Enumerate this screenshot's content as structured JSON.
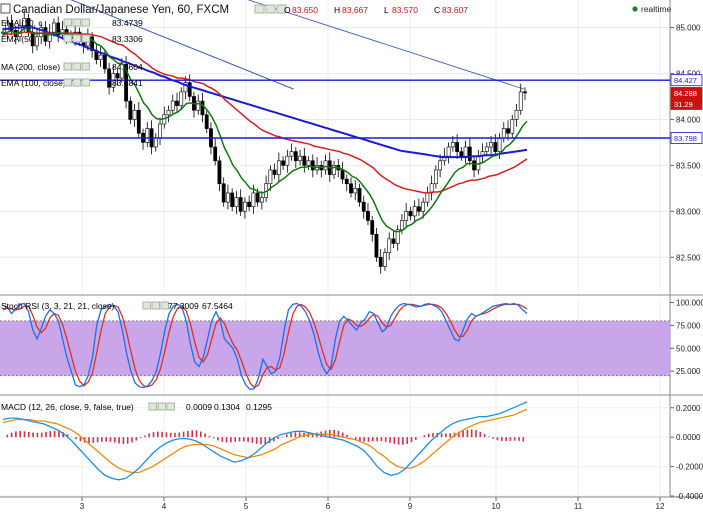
{
  "header": {
    "title": "Canadian Dollar/Japanese Yen, 60, FXCM",
    "ohlc": [
      {
        "k": "O",
        "v": "83.650"
      },
      {
        "k": "H",
        "v": "83.667"
      },
      {
        "k": "L",
        "v": "83.570"
      },
      {
        "k": "C",
        "v": "83.607"
      }
    ],
    "realtime_label": "realtime"
  },
  "colors": {
    "background": "#ffffff",
    "candle": "#000000",
    "ema10": "#0e7a0e",
    "ema50": "#d42020",
    "ma200": "#1a1ad0",
    "trendline": "#3a5fb0",
    "stoch_k": "#1e6fe8",
    "stoch_d": "#e03020",
    "stoch_band": "#c9a6ea",
    "macd_line": "#1e8fe0",
    "macd_signal": "#f08a10",
    "hist": "#d03048"
  },
  "indicators": [
    {
      "label": "EMA (10, c",
      "value": "83.4739",
      "color": "#0e7a0e"
    },
    {
      "label": "EMA (50",
      "value": "83.3306",
      "color": "#d42020"
    },
    {
      "label": "MA (200, close)",
      "value": "84.6604",
      "color": "#1a1ad0"
    },
    {
      "label": "EMA (100, close)",
      "value": "83.5841",
      "color": "#1a1ad0"
    }
  ],
  "price_tags": [
    {
      "value": "84.427",
      "bg": "#ffffff",
      "fg": "#1a1ad0"
    },
    {
      "value": "84.288",
      "bg": "#cc1111",
      "fg": "#ffffff"
    },
    {
      "value": "31.29",
      "bg": "#cc1111",
      "fg": "#ffffff"
    },
    {
      "value": "83.798",
      "bg": "#ffffff",
      "fg": "#1a1ad0"
    }
  ],
  "stoch_header": {
    "label": "Stoch RSI (3, 3, 21, 21, close)",
    "k": "77.3009",
    "d": "67.5464"
  },
  "macd_header": {
    "label": "MACD (12, 26, close, 9, false, true)",
    "hist": "0.0009",
    "macd": "0.1304",
    "signal": "0.1295"
  },
  "chart_data": {
    "type": "candlestick",
    "x_ticks": [
      "3",
      "4",
      "5",
      "6",
      "9",
      "10",
      "11",
      "12"
    ],
    "price_axis": {
      "ylim": [
        82.1,
        85.3
      ],
      "ticks": [
        "85.000",
        "84.500",
        "84.000",
        "83.500",
        "83.000",
        "82.500"
      ]
    },
    "horizontal_lines": [
      84.427,
      83.798
    ],
    "trendline": {
      "from": [
        0,
        85.6
      ],
      "to": [
        68.5,
        84.33
      ]
    },
    "closes": [
      84.95,
      85.05,
      84.97,
      84.9,
      85.02,
      85.1,
      84.95,
      84.8,
      84.9,
      85.0,
      84.85,
      84.95,
      85.05,
      84.92,
      84.98,
      84.9,
      84.88,
      84.95,
      84.85,
      84.8,
      84.9,
      84.75,
      84.65,
      84.7,
      84.55,
      84.35,
      84.5,
      84.45,
      84.6,
      84.2,
      84.0,
      84.1,
      83.85,
      83.75,
      83.9,
      83.7,
      83.8,
      83.95,
      84.05,
      84.1,
      84.2,
      84.15,
      84.3,
      84.4,
      84.25,
      84.1,
      84.2,
      84.05,
      83.9,
      83.7,
      83.55,
      83.3,
      83.1,
      83.2,
      83.05,
      83.15,
      83.0,
      83.1,
      83.05,
      83.2,
      83.1,
      83.15,
      83.3,
      83.45,
      83.4,
      83.55,
      83.5,
      83.6,
      83.65,
      83.55,
      83.6,
      83.5,
      83.55,
      83.45,
      83.5,
      83.45,
      83.55,
      83.4,
      83.5,
      83.45,
      83.35,
      83.3,
      83.2,
      83.25,
      83.1,
      83.0,
      82.9,
      82.75,
      82.5,
      82.4,
      82.55,
      82.7,
      82.65,
      82.8,
      82.9,
      83.0,
      82.95,
      83.05,
      83.0,
      83.1,
      83.2,
      83.3,
      83.45,
      83.55,
      83.6,
      83.7,
      83.75,
      83.65,
      83.6,
      83.7,
      83.55,
      83.45,
      83.6,
      83.65,
      83.7,
      83.75,
      83.65,
      83.8,
      83.9,
      83.85,
      84.0,
      84.1,
      84.3,
      84.29
    ],
    "ema10": [
      84.92,
      84.95,
      84.96,
      84.94,
      84.95,
      84.99,
      84.98,
      84.94,
      84.93,
      84.94,
      84.92,
      84.92,
      84.94,
      84.94,
      84.94,
      84.93,
      84.92,
      84.92,
      84.91,
      84.89,
      84.89,
      84.86,
      84.82,
      84.8,
      84.75,
      84.68,
      84.65,
      84.61,
      84.61,
      84.53,
      84.43,
      84.37,
      84.28,
      84.18,
      84.13,
      84.05,
      84.01,
      84.0,
      84.01,
      84.03,
      84.06,
      84.08,
      84.12,
      84.17,
      84.18,
      84.17,
      84.17,
      84.15,
      84.1,
      84.03,
      83.94,
      83.82,
      83.69,
      83.6,
      83.5,
      83.44,
      83.36,
      83.31,
      83.25,
      83.24,
      83.21,
      83.2,
      83.22,
      83.26,
      83.29,
      83.33,
      83.36,
      83.4,
      83.44,
      83.46,
      83.48,
      83.48,
      83.49,
      83.48,
      83.48,
      83.48,
      83.49,
      83.47,
      83.48,
      83.47,
      83.45,
      83.42,
      83.38,
      83.36,
      83.31,
      83.25,
      83.19,
      83.11,
      83.0,
      82.9,
      82.84,
      82.81,
      82.78,
      82.78,
      82.8,
      82.84,
      82.86,
      82.9,
      82.92,
      82.96,
      83.01,
      83.07,
      83.14,
      83.22,
      83.28,
      83.35,
      83.42,
      83.46,
      83.48,
      83.52,
      83.52,
      83.51,
      83.52,
      83.54,
      83.57,
      83.6,
      83.61,
      83.64,
      83.7,
      83.73,
      83.78,
      83.85,
      83.93,
      83.98
    ],
    "ema50": [
      84.92,
      84.93,
      84.93,
      84.93,
      84.94,
      84.95,
      84.95,
      84.94,
      84.94,
      84.94,
      84.94,
      84.94,
      84.94,
      84.94,
      84.94,
      84.94,
      84.94,
      84.94,
      84.93,
      84.93,
      84.93,
      84.92,
      84.91,
      84.9,
      84.88,
      84.86,
      84.84,
      84.82,
      84.81,
      84.78,
      84.74,
      84.71,
      84.67,
      84.63,
      84.6,
      84.56,
      84.53,
      84.51,
      84.49,
      84.48,
      84.47,
      84.45,
      84.45,
      84.44,
      84.43,
      84.41,
      84.4,
      84.39,
      84.36,
      84.34,
      84.31,
      84.27,
      84.22,
      84.18,
      84.14,
      84.1,
      84.06,
      84.02,
      83.98,
      83.95,
      83.91,
      83.88,
      83.86,
      83.84,
      83.82,
      83.81,
      83.79,
      83.78,
      83.77,
      83.76,
      83.75,
      83.74,
      83.73,
      83.71,
      83.7,
      83.69,
      83.68,
      83.67,
      83.66,
      83.65,
      83.63,
      83.62,
      83.6,
      83.58,
      83.56,
      83.53,
      83.5,
      83.47,
      83.42,
      83.38,
      83.35,
      83.32,
      83.29,
      83.27,
      83.25,
      83.24,
      83.23,
      83.22,
      83.21,
      83.2,
      83.2,
      83.21,
      83.21,
      83.22,
      83.24,
      83.26,
      83.28,
      83.3,
      83.31,
      83.33,
      83.34,
      83.34,
      83.35,
      83.36,
      83.38,
      83.39,
      83.4,
      83.42,
      83.44,
      83.46,
      83.48,
      83.51,
      83.54,
      83.57
    ],
    "ma200": [
      84.98,
      84.99,
      85.0,
      85.0,
      85.01,
      85.0,
      84.98,
      84.96,
      84.93,
      84.91,
      84.88,
      84.86,
      84.83,
      84.81,
      84.78,
      84.76,
      84.73,
      84.71,
      84.68,
      84.66,
      84.63,
      84.61,
      84.58,
      84.56,
      84.53,
      84.51,
      84.48,
      84.46,
      84.43,
      84.41,
      84.38,
      84.36,
      84.34,
      84.32,
      84.3,
      84.28,
      84.26,
      84.24,
      84.22,
      84.2,
      84.18,
      84.16,
      84.14,
      84.12,
      84.1,
      84.08,
      84.06,
      84.04,
      84.02,
      84.0,
      83.98,
      83.96,
      83.94,
      83.92,
      83.9,
      83.88,
      83.86,
      83.84,
      83.82,
      83.8,
      83.78,
      83.76,
      83.74,
      83.72,
      83.7,
      83.68,
      83.66,
      83.65,
      83.64,
      83.63,
      83.62,
      83.61,
      83.6,
      83.59,
      83.59,
      83.59,
      83.59,
      83.59,
      83.6,
      83.6,
      83.61,
      83.61,
      83.62,
      83.63,
      83.64,
      83.65,
      83.66,
      83.67
    ],
    "stoch_rsi": {
      "ylim": [
        0,
        105
      ],
      "ticks": [
        "100.000",
        "75.000",
        "50.000",
        "25.000"
      ],
      "band": [
        80,
        20
      ]
    },
    "stoch_k": [
      97,
      95,
      88,
      93,
      98,
      99,
      90,
      70,
      60,
      72,
      85,
      92,
      88,
      80,
      60,
      40,
      25,
      10,
      8,
      10,
      20,
      40,
      75,
      92,
      96,
      98,
      96,
      90,
      70,
      45,
      25,
      12,
      8,
      7,
      9,
      15,
      25,
      45,
      70,
      88,
      96,
      98,
      95,
      80,
      55,
      35,
      30,
      40,
      60,
      80,
      90,
      80,
      60,
      55,
      50,
      38,
      20,
      10,
      5,
      6,
      18,
      38,
      30,
      22,
      25,
      40,
      70,
      92,
      98,
      99,
      96,
      90,
      80,
      65,
      45,
      30,
      22,
      30,
      60,
      80,
      85,
      80,
      75,
      70,
      78,
      82,
      90,
      88,
      78,
      68,
      72,
      85,
      92,
      97,
      99,
      98,
      97,
      95,
      96,
      98,
      99,
      97,
      95,
      90,
      80,
      70,
      60,
      58,
      70,
      82,
      88,
      85,
      87,
      90,
      93,
      96,
      97,
      98,
      99,
      98,
      99,
      97,
      92,
      88
    ],
    "stoch_d": [
      92,
      94,
      93,
      92,
      93,
      96,
      96,
      86,
      73,
      67,
      72,
      83,
      88,
      86,
      76,
      60,
      42,
      25,
      14,
      9,
      13,
      23,
      45,
      69,
      88,
      95,
      97,
      95,
      85,
      68,
      47,
      27,
      15,
      9,
      8,
      10,
      16,
      28,
      47,
      68,
      85,
      94,
      96,
      91,
      77,
      57,
      40,
      35,
      43,
      60,
      77,
      83,
      77,
      65,
      55,
      48,
      36,
      23,
      12,
      7,
      10,
      21,
      29,
      30,
      26,
      29,
      45,
      67,
      87,
      96,
      98,
      95,
      89,
      78,
      63,
      47,
      32,
      27,
      37,
      57,
      75,
      82,
      80,
      75,
      74,
      77,
      83,
      87,
      85,
      78,
      73,
      75,
      83,
      91,
      96,
      98,
      98,
      97,
      96,
      97,
      98,
      98,
      97,
      94,
      88,
      80,
      70,
      63,
      63,
      70,
      80,
      85,
      87,
      88,
      90,
      93,
      95,
      97,
      98,
      98,
      98,
      98,
      96,
      93
    ],
    "macd": {
      "ylim": [
        -0.4,
        0.28
      ],
      "ticks": [
        "0.2000",
        "0.0000",
        "-0.2000",
        "-0.4000"
      ]
    },
    "macd_line": [
      0.12,
      0.13,
      0.13,
      0.12,
      0.11,
      0.1,
      0.09,
      0.07,
      0.05,
      0.02,
      -0.02,
      -0.07,
      -0.12,
      -0.17,
      -0.22,
      -0.26,
      -0.28,
      -0.29,
      -0.28,
      -0.25,
      -0.21,
      -0.16,
      -0.11,
      -0.07,
      -0.04,
      -0.02,
      -0.01,
      -0.01,
      -0.02,
      -0.04,
      -0.07,
      -0.1,
      -0.13,
      -0.15,
      -0.17,
      -0.16,
      -0.14,
      -0.11,
      -0.07,
      -0.03,
      0.0,
      0.02,
      0.03,
      0.04,
      0.04,
      0.03,
      0.02,
      0.01,
      0.0,
      -0.01,
      -0.02,
      -0.04,
      -0.06,
      -0.09,
      -0.14,
      -0.2,
      -0.24,
      -0.26,
      -0.25,
      -0.22,
      -0.17,
      -0.12,
      -0.07,
      -0.02,
      0.02,
      0.06,
      0.09,
      0.11,
      0.12,
      0.13,
      0.14,
      0.14,
      0.15,
      0.16,
      0.18,
      0.2,
      0.22,
      0.24
    ],
    "macd_signal": [
      0.1,
      0.11,
      0.12,
      0.12,
      0.12,
      0.11,
      0.11,
      0.1,
      0.09,
      0.07,
      0.05,
      0.02,
      -0.02,
      -0.06,
      -0.1,
      -0.14,
      -0.18,
      -0.21,
      -0.23,
      -0.24,
      -0.24,
      -0.22,
      -0.2,
      -0.17,
      -0.14,
      -0.11,
      -0.08,
      -0.06,
      -0.05,
      -0.05,
      -0.05,
      -0.06,
      -0.08,
      -0.1,
      -0.12,
      -0.13,
      -0.14,
      -0.13,
      -0.12,
      -0.1,
      -0.08,
      -0.05,
      -0.03,
      -0.01,
      0.01,
      0.02,
      0.02,
      0.02,
      0.02,
      0.01,
      0.0,
      -0.01,
      -0.02,
      -0.04,
      -0.06,
      -0.1,
      -0.13,
      -0.17,
      -0.2,
      -0.21,
      -0.21,
      -0.19,
      -0.16,
      -0.12,
      -0.08,
      -0.04,
      0.0,
      0.03,
      0.06,
      0.08,
      0.1,
      0.11,
      0.12,
      0.13,
      0.14,
      0.15,
      0.17,
      0.19
    ]
  }
}
